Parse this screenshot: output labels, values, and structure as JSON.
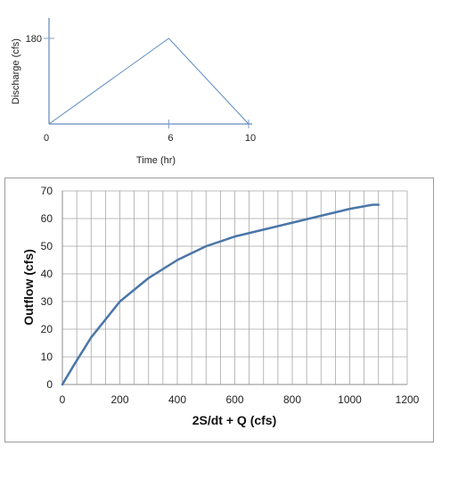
{
  "chart_data": [
    {
      "type": "line",
      "title": "",
      "xlabel": "Time (hr)",
      "ylabel": "Discharge (cfs)",
      "x_ticks": [
        "0",
        "6",
        "10"
      ],
      "y_ticks": [
        "180"
      ],
      "xlim": [
        0,
        10
      ],
      "ylim": [
        0,
        180
      ],
      "grid": false,
      "series": [
        {
          "x": [
            0,
            6,
            10
          ],
          "y": [
            0,
            180,
            0
          ],
          "color": "#5b8bc0"
        }
      ]
    },
    {
      "type": "line",
      "title": "",
      "xlabel": "2S/dt + Q (cfs)",
      "ylabel": "Outflow (cfs)",
      "x_ticks": [
        "0",
        "200",
        "400",
        "600",
        "800",
        "1000",
        "1200"
      ],
      "y_ticks": [
        "0",
        "10",
        "20",
        "30",
        "40",
        "50",
        "60",
        "70"
      ],
      "xlim": [
        0,
        1200
      ],
      "ylim": [
        0,
        70
      ],
      "grid": true,
      "x_minor_step": 50,
      "series": [
        {
          "x": [
            0,
            40,
            100,
            200,
            300,
            400,
            500,
            600,
            700,
            800,
            900,
            1000,
            1080,
            1100
          ],
          "y": [
            0,
            7,
            17,
            30,
            38.5,
            45,
            50,
            53.5,
            56,
            58.5,
            61,
            63.5,
            65,
            65
          ],
          "color": "#4a76a8"
        }
      ]
    }
  ]
}
